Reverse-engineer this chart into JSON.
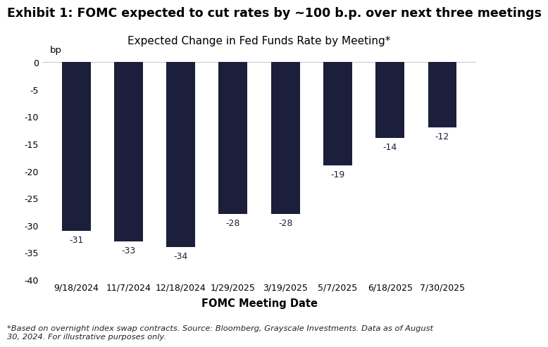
{
  "title": "Exhibit 1: FOMC expected to cut rates by ~100 b.p. over next three meetings",
  "chart_title": "Expected Change in Fed Funds Rate by Meeting*",
  "xlabel": "FOMC Meeting Date",
  "bp_label": "bp",
  "categories": [
    "9/18/2024",
    "11/7/2024",
    "12/18/2024",
    "1/29/2025",
    "3/19/2025",
    "5/7/2025",
    "6/18/2025",
    "7/30/2025"
  ],
  "values": [
    -31,
    -33,
    -34,
    -28,
    -28,
    -19,
    -14,
    -12
  ],
  "bar_color": "#1b1f3b",
  "bar_width": 0.55,
  "ylim": [
    -40,
    2
  ],
  "yticks": [
    0,
    -5,
    -10,
    -15,
    -20,
    -25,
    -30,
    -35,
    -40
  ],
  "background_color": "#ffffff",
  "footnote": "*Based on overnight index swap contracts. Source: Bloomberg, Grayscale Investments. Data as of August\n30, 2024. For illustrative purposes only.",
  "title_fontsize": 12.5,
  "chart_title_fontsize": 11,
  "tick_fontsize": 9,
  "footnote_fontsize": 8.2,
  "value_label_fontsize": 9,
  "xlabel_fontsize": 10.5,
  "bp_fontsize": 9.5
}
